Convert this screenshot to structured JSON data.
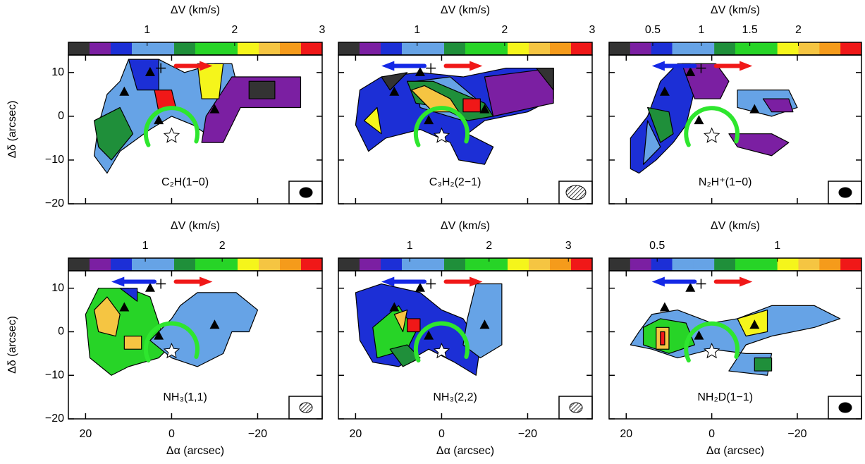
{
  "chart_data": [
    {
      "type": "map",
      "label": "C₂H(1−0)",
      "colorbar_label": "ΔV (km/s)",
      "clim": [
        0.1,
        3
      ],
      "cticks": [
        1,
        2,
        3
      ],
      "colors": [
        "#333333",
        "#7b1fa2",
        "#1c2fd6",
        "#66a3e6",
        "#66a3e6",
        "#1f8f3a",
        "#27d427",
        "#27d427",
        "#f5f51b",
        "#f5c542",
        "#f59b1b",
        "#f01818"
      ],
      "xlim": [
        24,
        -35
      ],
      "xticks": [
        20,
        0,
        {
          "value": -20,
          "label": "−20"
        }
      ],
      "ylim": [
        -20,
        14
      ],
      "yticks": [
        {
          "value": -20,
          "label": "−20"
        },
        {
          "value": -10,
          "label": "−10"
        },
        0,
        10
      ],
      "ylabel": "Δδ (arcsec)"
    },
    {
      "type": "map",
      "label": "C₃H₂(2−1)",
      "colorbar_label": "ΔV (km/s)",
      "clim": [
        0.1,
        3
      ],
      "cticks": [
        1,
        2,
        3
      ],
      "colors": [
        "#333333",
        "#7b1fa2",
        "#1c2fd6",
        "#66a3e6",
        "#66a3e6",
        "#1f8f3a",
        "#27d427",
        "#27d427",
        "#f5f51b",
        "#f5c542",
        "#f59b1b",
        "#f01818"
      ],
      "xlim": [
        24,
        -35
      ],
      "xticks": [
        20,
        0,
        {
          "value": -20,
          "label": "−20"
        }
      ],
      "ylim": [
        -20,
        14
      ],
      "yticks": [
        {
          "value": -20,
          "label": "−20"
        },
        {
          "value": -10,
          "label": "−10"
        },
        0,
        10
      ]
    },
    {
      "type": "map",
      "label": "N₂H⁺(1−0)",
      "colorbar_label": "ΔV (km/s)",
      "clim": [
        0.05,
        2.65
      ],
      "cticks": [
        0.5,
        1,
        1.5,
        2
      ],
      "colors": [
        "#333333",
        "#7b1fa2",
        "#1c2fd6",
        "#66a3e6",
        "#66a3e6",
        "#1f8f3a",
        "#27d427",
        "#27d427",
        "#f5f51b",
        "#f5c542",
        "#f59b1b",
        "#f01818"
      ],
      "xlim": [
        24,
        -35
      ],
      "xticks": [
        20,
        0,
        {
          "value": -20,
          "label": "−20"
        }
      ],
      "ylim": [
        -20,
        14
      ],
      "yticks": [
        {
          "value": -20,
          "label": "−20"
        },
        {
          "value": -10,
          "label": "−10"
        },
        0,
        10
      ]
    },
    {
      "type": "map",
      "label": "NH₃(1,1)",
      "colorbar_label": "ΔV (km/s)",
      "clim": [
        0,
        3.3
      ],
      "cticks": [
        1,
        2
      ],
      "colors": [
        "#333333",
        "#7b1fa2",
        "#1c2fd6",
        "#66a3e6",
        "#66a3e6",
        "#1f8f3a",
        "#27d427",
        "#27d427",
        "#f5f51b",
        "#f5c542",
        "#f59b1b",
        "#f01818"
      ],
      "xlim": [
        24,
        -35
      ],
      "xticks": [
        20,
        0,
        {
          "value": -20,
          "label": "−20"
        }
      ],
      "xlabel": "Δα (arcsec)",
      "ylim": [
        -20,
        14
      ],
      "yticks": [
        {
          "value": -20,
          "label": "−20"
        },
        {
          "value": -10,
          "label": "−10"
        },
        0,
        10
      ],
      "ylabel": "Δδ (arcsec)"
    },
    {
      "type": "map",
      "label": "NH₃(2,2)",
      "colorbar_label": "ΔV (km/s)",
      "clim": [
        0.1,
        3.3
      ],
      "cticks": [
        1,
        2,
        3
      ],
      "colors": [
        "#333333",
        "#7b1fa2",
        "#1c2fd6",
        "#66a3e6",
        "#66a3e6",
        "#1f8f3a",
        "#27d427",
        "#27d427",
        "#f5f51b",
        "#f5c542",
        "#f59b1b",
        "#f01818"
      ],
      "xlim": [
        24,
        -35
      ],
      "xticks": [
        20,
        0,
        {
          "value": -20,
          "label": "−20"
        }
      ],
      "xlabel": "Δα (arcsec)",
      "ylim": [
        -20,
        14
      ],
      "yticks": [
        {
          "value": -20,
          "label": "−20"
        },
        {
          "value": -10,
          "label": "−10"
        },
        0,
        10
      ]
    },
    {
      "type": "map",
      "label": "NH₂D(1−1)",
      "colorbar_label": "ΔV (km/s)",
      "clim": [
        0.3,
        1.35
      ],
      "cticks": [
        0.5,
        1
      ],
      "colors": [
        "#333333",
        "#7b1fa2",
        "#1c2fd6",
        "#66a3e6",
        "#66a3e6",
        "#1f8f3a",
        "#27d427",
        "#27d427",
        "#f5f51b",
        "#f5c542",
        "#f59b1b",
        "#f01818"
      ],
      "xlim": [
        24,
        -35
      ],
      "xticks": [
        20,
        0,
        {
          "value": -20,
          "label": "−20"
        }
      ],
      "xlabel": "Δα (arcsec)",
      "ylim": [
        -20,
        14
      ],
      "yticks": [
        {
          "value": -20,
          "label": "−20"
        },
        {
          "value": -10,
          "label": "−10"
        },
        0,
        10
      ]
    }
  ]
}
